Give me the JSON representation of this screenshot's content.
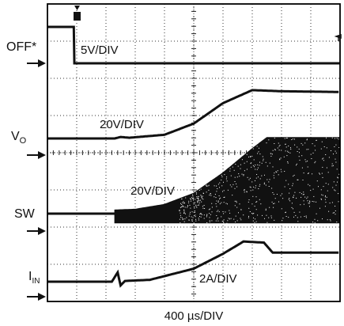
{
  "chart_data": {
    "type": "line",
    "instrument": "oscilloscope capture",
    "grid": "10 x 8 divisions, dotted graticule",
    "x_scale": {
      "label": "400 µs/DIV",
      "divisions": 10
    },
    "trigger_marker": "T",
    "channels": [
      {
        "name": "OFF*",
        "name_main": "OFF*",
        "name_sub": "",
        "scale": "5V/DIV",
        "level_color": "#111111",
        "samples": [
          [
            0.0,
            0.08
          ],
          [
            0.9,
            0.08
          ],
          [
            0.92,
            0.0
          ],
          [
            10.0,
            0.0
          ]
        ]
      },
      {
        "name": "VO",
        "name_main": "V",
        "name_sub": "O",
        "scale": "20V/DIV",
        "samples": [
          [
            0.0,
            0.0
          ],
          [
            2.3,
            0.0
          ],
          [
            2.5,
            0.04
          ],
          [
            2.8,
            0.02
          ],
          [
            4.0,
            0.1
          ],
          [
            5.0,
            0.4
          ],
          [
            6.0,
            0.95
          ],
          [
            7.0,
            1.3
          ],
          [
            8.0,
            1.27
          ],
          [
            10.0,
            1.25
          ]
        ]
      },
      {
        "name": "SW",
        "name_main": "SW",
        "name_sub": "",
        "scale": "20V/DIV",
        "samples": [
          [
            0.0,
            0.0
          ],
          [
            2.3,
            0.0
          ],
          [
            2.4,
            -0.25
          ],
          [
            3.0,
            -0.25
          ],
          [
            10.0,
            -0.25
          ]
        ],
        "envelope_top": [
          [
            2.3,
            0.1
          ],
          [
            3.0,
            0.12
          ],
          [
            4.0,
            0.25
          ],
          [
            5.0,
            0.55
          ],
          [
            6.0,
            1.1
          ],
          [
            7.0,
            1.75
          ],
          [
            7.5,
            2.05
          ],
          [
            8.5,
            2.05
          ],
          [
            10.0,
            2.05
          ]
        ]
      },
      {
        "name": "IIN",
        "name_main": "I",
        "name_sub": "IN",
        "scale": "2A/DIV",
        "samples": [
          [
            0.0,
            0.0
          ],
          [
            2.2,
            0.0
          ],
          [
            2.4,
            0.25
          ],
          [
            2.5,
            -0.1
          ],
          [
            2.65,
            0.02
          ],
          [
            3.5,
            0.05
          ],
          [
            5.0,
            0.35
          ],
          [
            6.0,
            0.75
          ],
          [
            6.7,
            1.08
          ],
          [
            7.4,
            1.05
          ],
          [
            7.7,
            0.78
          ],
          [
            10.0,
            0.78
          ]
        ]
      }
    ]
  }
}
